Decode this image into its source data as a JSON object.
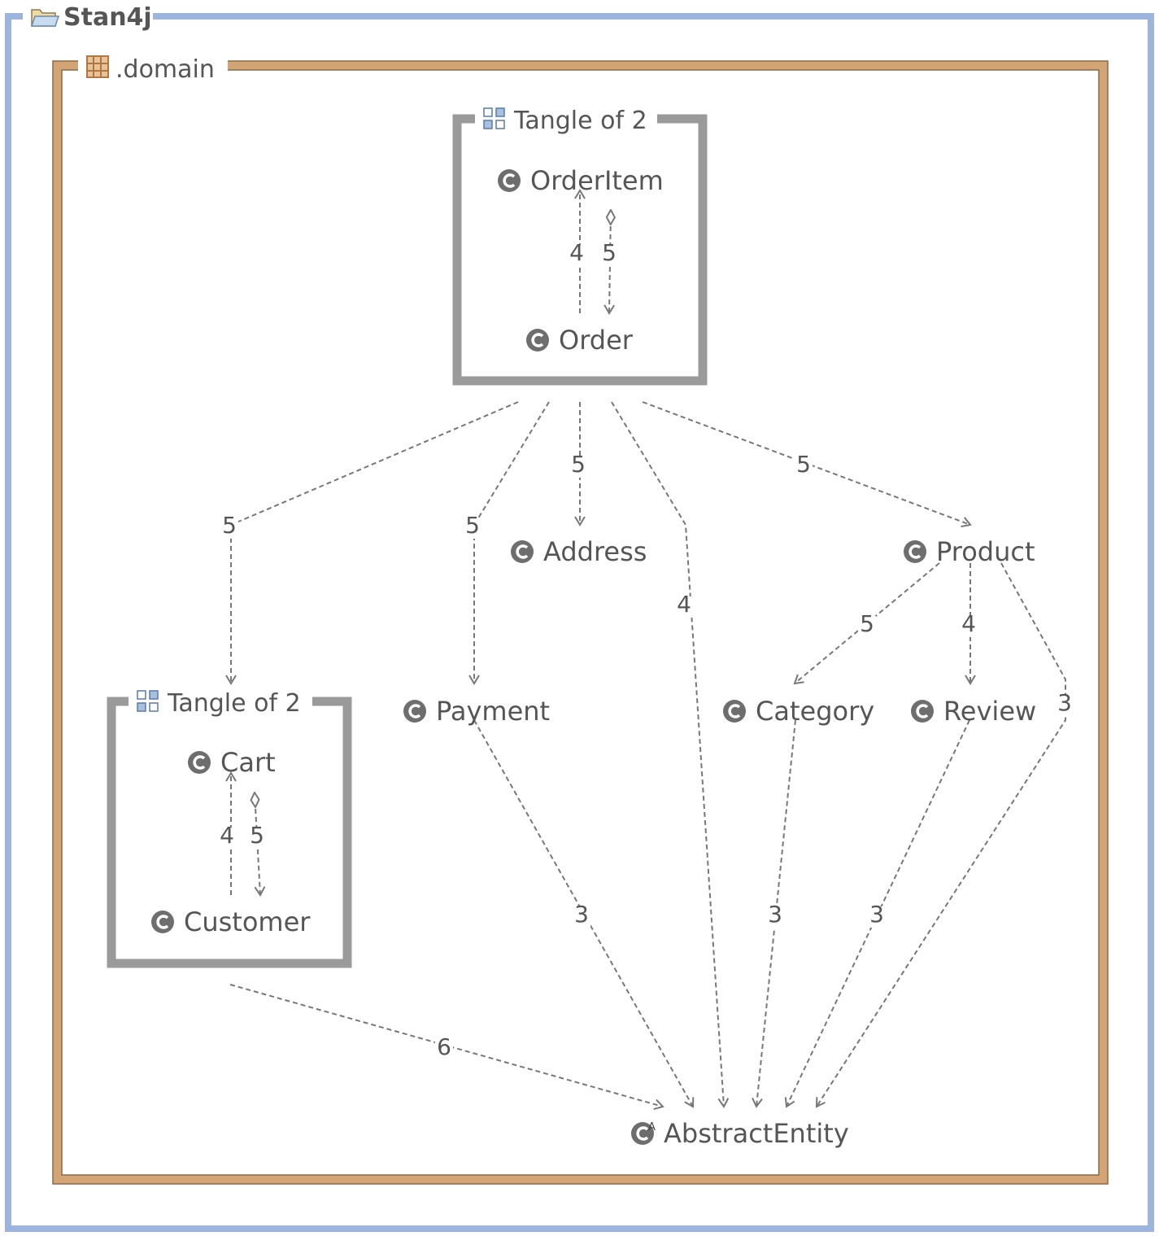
{
  "project": {
    "label": "Stan4j",
    "icon": "folder-open-icon"
  },
  "package": {
    "label": ".domain",
    "icon": "package-icon"
  },
  "tangles": [
    {
      "id": "tangle_top",
      "label": "Tangle of 2",
      "icon": "tangle-icon"
    },
    {
      "id": "tangle_left",
      "label": "Tangle of 2",
      "icon": "tangle-icon"
    }
  ],
  "classes": [
    {
      "id": "orderitem",
      "label": "OrderItem",
      "icon": "class-icon"
    },
    {
      "id": "order",
      "label": "Order",
      "icon": "class-icon"
    },
    {
      "id": "cart",
      "label": "Cart",
      "icon": "class-icon"
    },
    {
      "id": "customer",
      "label": "Customer",
      "icon": "class-icon"
    },
    {
      "id": "address",
      "label": "Address",
      "icon": "class-icon"
    },
    {
      "id": "product",
      "label": "Product",
      "icon": "class-icon"
    },
    {
      "id": "payment",
      "label": "Payment",
      "icon": "class-icon"
    },
    {
      "id": "category",
      "label": "Category",
      "icon": "class-icon"
    },
    {
      "id": "review",
      "label": "Review",
      "icon": "class-icon"
    },
    {
      "id": "abstractentity",
      "label": "AbstractEntity",
      "icon": "abstract-class-icon"
    }
  ],
  "edges": [
    {
      "id": "e1",
      "from": "order",
      "to": "orderitem",
      "weight": "4"
    },
    {
      "id": "e2",
      "from": "orderitem",
      "to": "order",
      "weight": "5"
    },
    {
      "id": "e3",
      "from": "customer",
      "to": "cart",
      "weight": "4"
    },
    {
      "id": "e4",
      "from": "cart",
      "to": "customer",
      "weight": "5"
    },
    {
      "id": "e5",
      "from": "tangle_top",
      "to": "tangle_left",
      "weight": "5"
    },
    {
      "id": "e6",
      "from": "tangle_top",
      "to": "payment",
      "weight": "5"
    },
    {
      "id": "e7",
      "from": "tangle_top",
      "to": "address",
      "weight": "5"
    },
    {
      "id": "e8",
      "from": "tangle_top",
      "to": "abstractentity",
      "weight": "4"
    },
    {
      "id": "e9",
      "from": "tangle_top",
      "to": "product",
      "weight": "5"
    },
    {
      "id": "e10",
      "from": "product",
      "to": "category",
      "weight": "5"
    },
    {
      "id": "e11",
      "from": "product",
      "to": "review",
      "weight": "4"
    },
    {
      "id": "e12",
      "from": "product",
      "to": "abstractentity",
      "weight": "3"
    },
    {
      "id": "e13",
      "from": "payment",
      "to": "abstractentity",
      "weight": "3"
    },
    {
      "id": "e14",
      "from": "category",
      "to": "abstractentity",
      "weight": "3"
    },
    {
      "id": "e15",
      "from": "review",
      "to": "abstractentity",
      "weight": "3"
    },
    {
      "id": "e16",
      "from": "tangle_left",
      "to": "abstractentity",
      "weight": "6"
    }
  ],
  "colors": {
    "outer_frame": "#9db5dc",
    "package_frame": "#d4a574",
    "package_frame_edge": "#8a6a4a",
    "tangle_frame": "#9a9a9a",
    "text": "#555555",
    "edge": "#777777"
  }
}
